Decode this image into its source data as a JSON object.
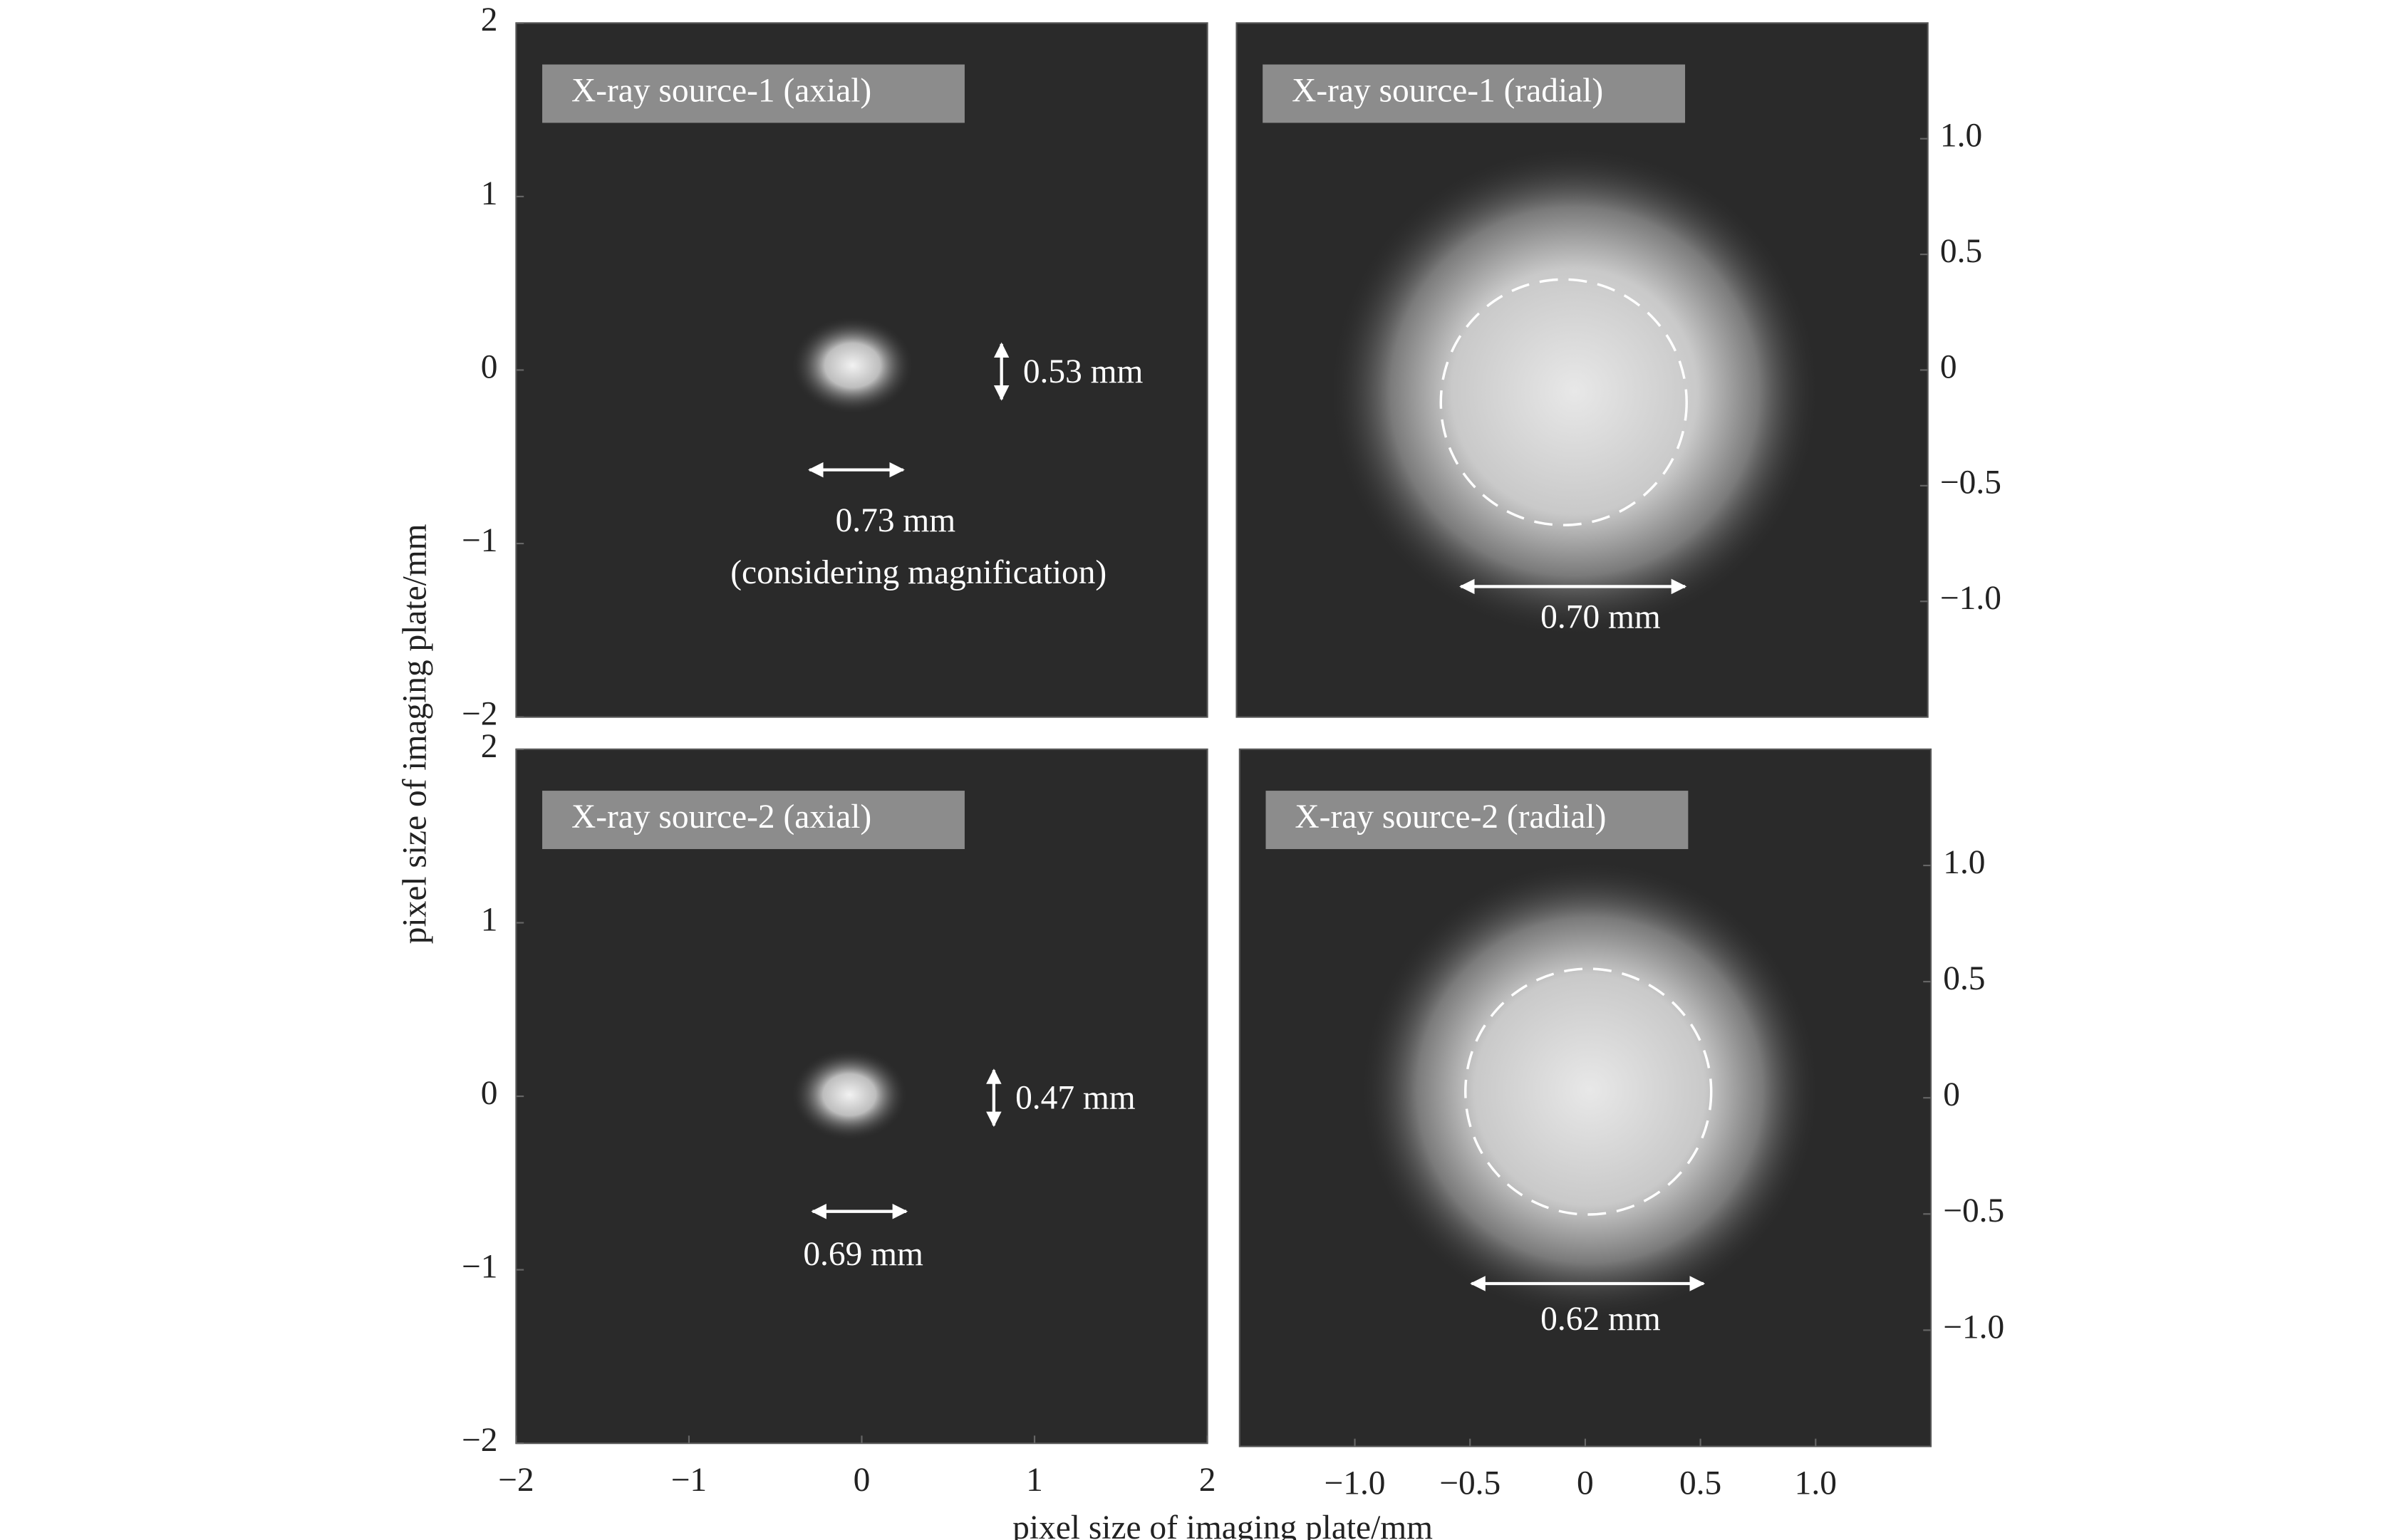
{
  "figure": {
    "xlabel": "pixel size of imaging plate/mm",
    "ylabel": "pixel size of imaging plate/mm"
  },
  "chart_data": [
    {
      "type": "image",
      "title": "X-ray source-1 (axial)",
      "xlim": [
        -2,
        2
      ],
      "ylim": [
        -2,
        2
      ],
      "yticks": [
        {
          "value": -2,
          "label": "−2"
        },
        {
          "value": -1,
          "label": "−1"
        },
        0,
        1,
        2
      ],
      "annotations": [
        "0.53 mm",
        "0.73 mm",
        "(considering magnification)"
      ]
    },
    {
      "type": "image",
      "title": "X-ray source-1 (radial)",
      "xlim": [
        -1.5,
        1.5
      ],
      "ylim": [
        -1.5,
        1.5
      ],
      "yticks": [
        {
          "value": -1,
          "label": "−1.0"
        },
        {
          "value": -0.5,
          "label": "−0.5"
        },
        0,
        0.5,
        {
          "value": 1,
          "label": "1.0"
        }
      ],
      "annotations": [
        "0.70 mm"
      ]
    },
    {
      "type": "image",
      "title": "X-ray source-2 (axial)",
      "xlim": [
        -2,
        2
      ],
      "ylim": [
        -2,
        2
      ],
      "xticks": [
        {
          "value": -2,
          "label": "−2"
        },
        {
          "value": -1,
          "label": "−1"
        },
        0,
        1,
        2
      ],
      "yticks": [
        {
          "value": -2,
          "label": "−2"
        },
        {
          "value": -1,
          "label": "−1"
        },
        0,
        1,
        2
      ],
      "annotations": [
        "0.47 mm",
        "0.69 mm"
      ]
    },
    {
      "type": "image",
      "title": "X-ray source-2 (radial)",
      "xlim": [
        -1.5,
        1.5
      ],
      "ylim": [
        -1.5,
        1.5
      ],
      "xticks": [
        {
          "value": -1,
          "label": "−1.0"
        },
        {
          "value": -0.5,
          "label": "−0.5"
        },
        0,
        0.5,
        {
          "value": 1,
          "label": "1.0"
        }
      ],
      "yticks": [
        {
          "value": -1,
          "label": "−1.0"
        },
        {
          "value": -0.5,
          "label": "−0.5"
        },
        0,
        0.5,
        {
          "value": 1,
          "label": "1.0"
        }
      ],
      "annotations": [
        "0.62 mm"
      ]
    }
  ]
}
